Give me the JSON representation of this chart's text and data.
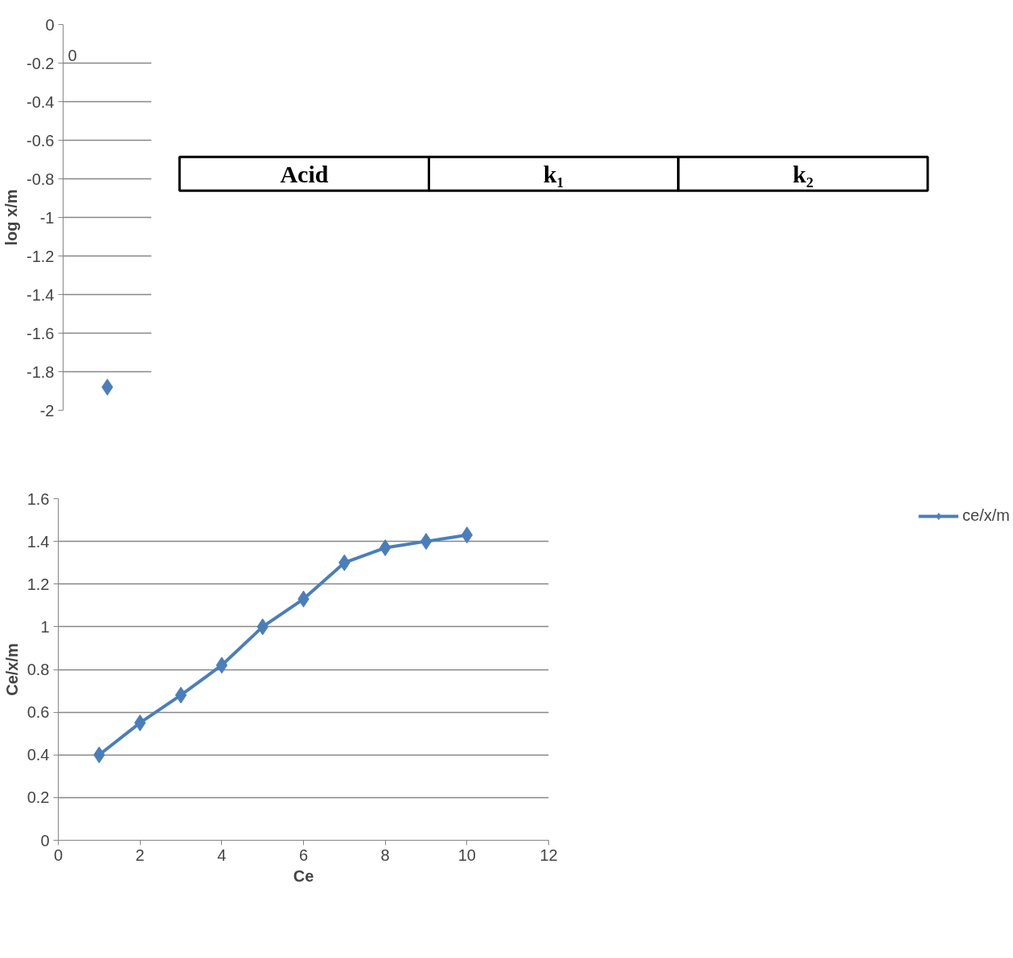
{
  "chart_data": [
    {
      "type": "line",
      "categories": [
        null
      ],
      "ylabel": "log x/m",
      "ylim": [
        -2,
        0
      ],
      "yticks": [
        0,
        -0.2,
        -0.4,
        -0.6,
        -0.8,
        -1,
        -1.2,
        -1.4,
        -1.6,
        -1.8,
        -2
      ],
      "grid": "y",
      "marker": "diamond",
      "series": [
        {
          "color": "#4a7ebb",
          "values": [
            -1.88
          ]
        }
      ],
      "annotations": [
        "0"
      ]
    },
    {
      "type": "other",
      "annotations": [
        "Acid",
        "k₁",
        "k₂"
      ]
    },
    {
      "type": "line",
      "x": [
        1,
        2,
        3,
        4,
        5,
        6,
        7,
        8,
        9,
        10
      ],
      "xlabel": "Ce",
      "ylabel": "Ce/x/m",
      "xlim": [
        0,
        12
      ],
      "xticks": [
        0,
        2,
        4,
        6,
        8,
        10,
        12
      ],
      "ylim": [
        0,
        1.6
      ],
      "yticks": [
        0,
        0.2,
        0.4,
        0.6,
        0.8,
        1,
        1.2,
        1.4,
        1.6
      ],
      "grid": "y",
      "legend": "right",
      "marker": "diamond",
      "series": [
        {
          "name": "ce/x/m",
          "color": "#4a7ebb",
          "values": [
            0.4,
            0.55,
            0.68,
            0.82,
            1.0,
            1.13,
            1.3,
            1.37,
            1.4,
            1.43
          ]
        }
      ]
    }
  ]
}
